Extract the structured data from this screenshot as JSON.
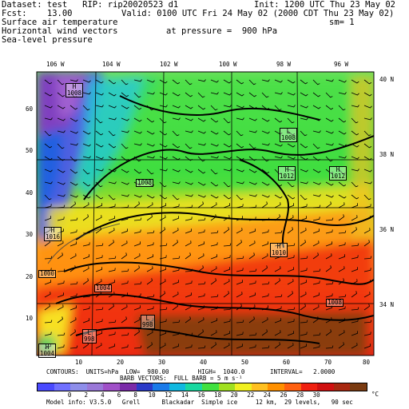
{
  "header": {
    "dataset_line": "Dataset: test   RIP: rip20020523 d1",
    "init_line": "Init: 1200 UTC Thu 23 May 02",
    "fcst_line": "Fcst:    13.00",
    "valid_line": "Valid: 0100 UTC Fri 24 May 02 (2000 CDT Thu 23 May 02)",
    "field1": "Surface air temperature",
    "sm_label": "sm= 1",
    "field2": "Horizontal wind vectors",
    "pressure_label": "at pressure =  900 hPa",
    "field3": "Sea-level pressure"
  },
  "axes": {
    "lon_labels": [
      "106 W",
      "104 W",
      "102 W",
      "100 W",
      "98 W",
      "96 W"
    ],
    "lat_labels": [
      "40 N",
      "38 N",
      "36 N",
      "34 N"
    ],
    "y_ticks": [
      "60",
      "50",
      "40",
      "30",
      "20",
      "10"
    ],
    "x_ticks": [
      "10",
      "20",
      "30",
      "40",
      "50",
      "60",
      "70",
      "80"
    ]
  },
  "contour_labels": [
    {
      "text": "1008",
      "kind": "H"
    },
    {
      "text": "1008",
      "kind": "L"
    },
    {
      "text": "1012",
      "kind": "H"
    },
    {
      "text": "1012",
      "kind": "H"
    },
    {
      "text": "1008",
      "kind": "plain"
    },
    {
      "text": "1016",
      "kind": "H"
    },
    {
      "text": "1010",
      "kind": "H"
    },
    {
      "text": "1000",
      "kind": "plain"
    },
    {
      "text": "1004",
      "kind": "plain"
    },
    {
      "text": "998",
      "kind": "L"
    },
    {
      "text": "1008",
      "kind": "plain"
    },
    {
      "text": "998",
      "kind": "L"
    },
    {
      "text": "1004",
      "kind": "H"
    }
  ],
  "footer": {
    "contours_line": "CONTOURS:  UNITS=hPa  LOW=  980.00        HIGH=  1040.0       INTERVAL=   2.0000",
    "barb_line": "BARB VECTORS:  FULL BARB = 5 m s⁻¹",
    "model_info": "Model info: V3.5.0   Grell      Blackadar  Simple ice     12 km,  29 levels,   90 sec"
  },
  "colorbar": {
    "labels": [
      "0",
      "2",
      "4",
      "6",
      "8",
      "10",
      "12",
      "14",
      "16",
      "18",
      "20",
      "22",
      "24",
      "26",
      "28",
      "30"
    ],
    "unit": "°C",
    "colors": [
      "#4a4aff",
      "#7070ff",
      "#8e8eea",
      "#9a78d8",
      "#a050c8",
      "#7a2aa8",
      "#2a3ac8",
      "#1a7ae8",
      "#10b8e0",
      "#18d8a0",
      "#40e040",
      "#a0e020",
      "#f0f020",
      "#ffc020",
      "#ff9000",
      "#ff6010",
      "#f02010",
      "#d01010",
      "#a82810",
      "#7a3a10"
    ]
  }
}
